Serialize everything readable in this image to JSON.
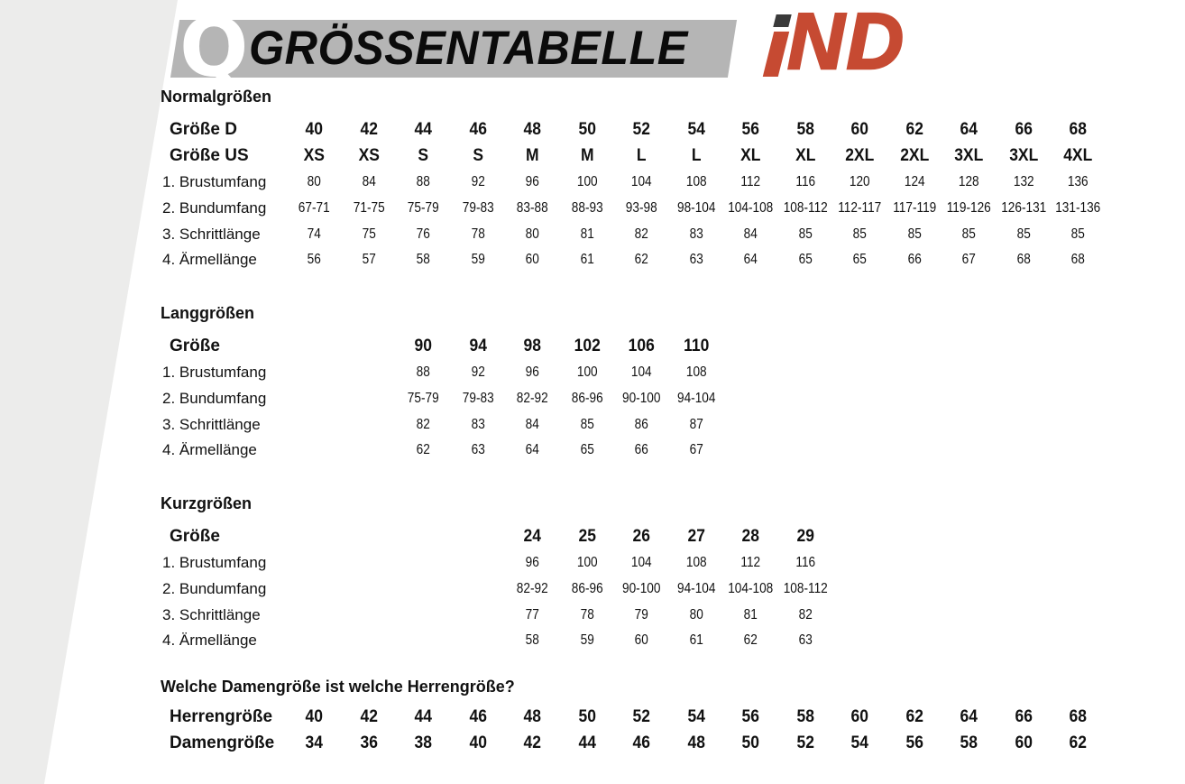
{
  "colors": {
    "accent_red": "#c64a32",
    "banner_gray": "#b5b5b5",
    "diagonal_band_gray": "#ececeb",
    "text_black": "#111111",
    "logo_dot_dark": "#3a3a3a",
    "q_white": "#ffffff"
  },
  "header": {
    "q_letter": "Q",
    "title": "GRÖSSENTABELLE",
    "brand": {
      "text": "iND",
      "i": "i",
      "nd": "ND"
    }
  },
  "tables": {
    "normal": {
      "title": "Normalgrößen",
      "rows": [
        {
          "label": "Größe D",
          "style": "header",
          "values": [
            "40",
            "42",
            "44",
            "46",
            "48",
            "50",
            "52",
            "54",
            "56",
            "58",
            "60",
            "62",
            "64",
            "66",
            "68"
          ]
        },
        {
          "label": "Größe US",
          "style": "header",
          "values": [
            "XS",
            "XS",
            "S",
            "S",
            "M",
            "M",
            "L",
            "L",
            "XL",
            "XL",
            "2XL",
            "2XL",
            "3XL",
            "3XL",
            "4XL"
          ]
        },
        {
          "label": "1. Brustumfang",
          "style": "data",
          "values": [
            "80",
            "84",
            "88",
            "92",
            "96",
            "100",
            "104",
            "108",
            "112",
            "116",
            "120",
            "124",
            "128",
            "132",
            "136"
          ]
        },
        {
          "label": "2. Bundumfang",
          "style": "data",
          "values": [
            "67-71",
            "71-75",
            "75-79",
            "79-83",
            "83-88",
            "88-93",
            "93-98",
            "98-104",
            "104-108",
            "108-112",
            "112-117",
            "117-119",
            "119-126",
            "126-131",
            "131-136"
          ]
        },
        {
          "label": "3. Schrittlänge",
          "style": "data",
          "values": [
            "74",
            "75",
            "76",
            "78",
            "80",
            "81",
            "82",
            "83",
            "84",
            "85",
            "85",
            "85",
            "85",
            "85",
            "85"
          ]
        },
        {
          "label": "4. Ärmellänge",
          "style": "data",
          "values": [
            "56",
            "57",
            "58",
            "59",
            "60",
            "61",
            "62",
            "63",
            "64",
            "65",
            "65",
            "66",
            "67",
            "68",
            "68"
          ]
        }
      ]
    },
    "lang": {
      "title": "Langgrößen",
      "rows": [
        {
          "label": "Größe",
          "style": "header",
          "values": [
            "",
            "",
            "90",
            "94",
            "98",
            "102",
            "106",
            "110",
            "",
            "",
            "",
            "",
            "",
            "",
            ""
          ]
        },
        {
          "label": "1. Brustumfang",
          "style": "data",
          "values": [
            "",
            "",
            "88",
            "92",
            "96",
            "100",
            "104",
            "108",
            "",
            "",
            "",
            "",
            "",
            "",
            ""
          ]
        },
        {
          "label": "2. Bundumfang",
          "style": "data",
          "values": [
            "",
            "",
            "75-79",
            "79-83",
            "82-92",
            "86-96",
            "90-100",
            "94-104",
            "",
            "",
            "",
            "",
            "",
            "",
            ""
          ]
        },
        {
          "label": "3. Schrittlänge",
          "style": "data",
          "values": [
            "",
            "",
            "82",
            "83",
            "84",
            "85",
            "86",
            "87",
            "",
            "",
            "",
            "",
            "",
            "",
            ""
          ]
        },
        {
          "label": "4. Ärmellänge",
          "style": "data",
          "values": [
            "",
            "",
            "62",
            "63",
            "64",
            "65",
            "66",
            "67",
            "",
            "",
            "",
            "",
            "",
            "",
            ""
          ]
        }
      ]
    },
    "kurz": {
      "title": "Kurzgrößen",
      "rows": [
        {
          "label": "Größe",
          "style": "header",
          "values": [
            "",
            "",
            "",
            "",
            "24",
            "25",
            "26",
            "27",
            "28",
            "29",
            "",
            "",
            "",
            "",
            ""
          ]
        },
        {
          "label": "1. Brustumfang",
          "style": "data",
          "values": [
            "",
            "",
            "",
            "",
            "96",
            "100",
            "104",
            "108",
            "112",
            "116",
            "",
            "",
            "",
            "",
            ""
          ]
        },
        {
          "label": "2. Bundumfang",
          "style": "data",
          "values": [
            "",
            "",
            "",
            "",
            "82-92",
            "86-96",
            "90-100",
            "94-104",
            "104-108",
            "108-112",
            "",
            "",
            "",
            "",
            ""
          ]
        },
        {
          "label": "3. Schrittlänge",
          "style": "data",
          "values": [
            "",
            "",
            "",
            "",
            "77",
            "78",
            "79",
            "80",
            "81",
            "82",
            "",
            "",
            "",
            "",
            ""
          ]
        },
        {
          "label": "4. Ärmellänge",
          "style": "data",
          "values": [
            "",
            "",
            "",
            "",
            "58",
            "59",
            "60",
            "61",
            "62",
            "63",
            "",
            "",
            "",
            "",
            ""
          ]
        }
      ]
    },
    "conversion": {
      "title": "Welche Damengröße ist welche Herrengröße?",
      "rows": [
        {
          "label": "Herrengröße",
          "style": "header",
          "values": [
            "40",
            "42",
            "44",
            "46",
            "48",
            "50",
            "52",
            "54",
            "56",
            "58",
            "60",
            "62",
            "64",
            "66",
            "68"
          ]
        },
        {
          "label": "Damengröße",
          "style": "header",
          "values": [
            "34",
            "36",
            "38",
            "40",
            "42",
            "44",
            "46",
            "48",
            "50",
            "52",
            "54",
            "56",
            "58",
            "60",
            "62"
          ]
        }
      ]
    }
  }
}
